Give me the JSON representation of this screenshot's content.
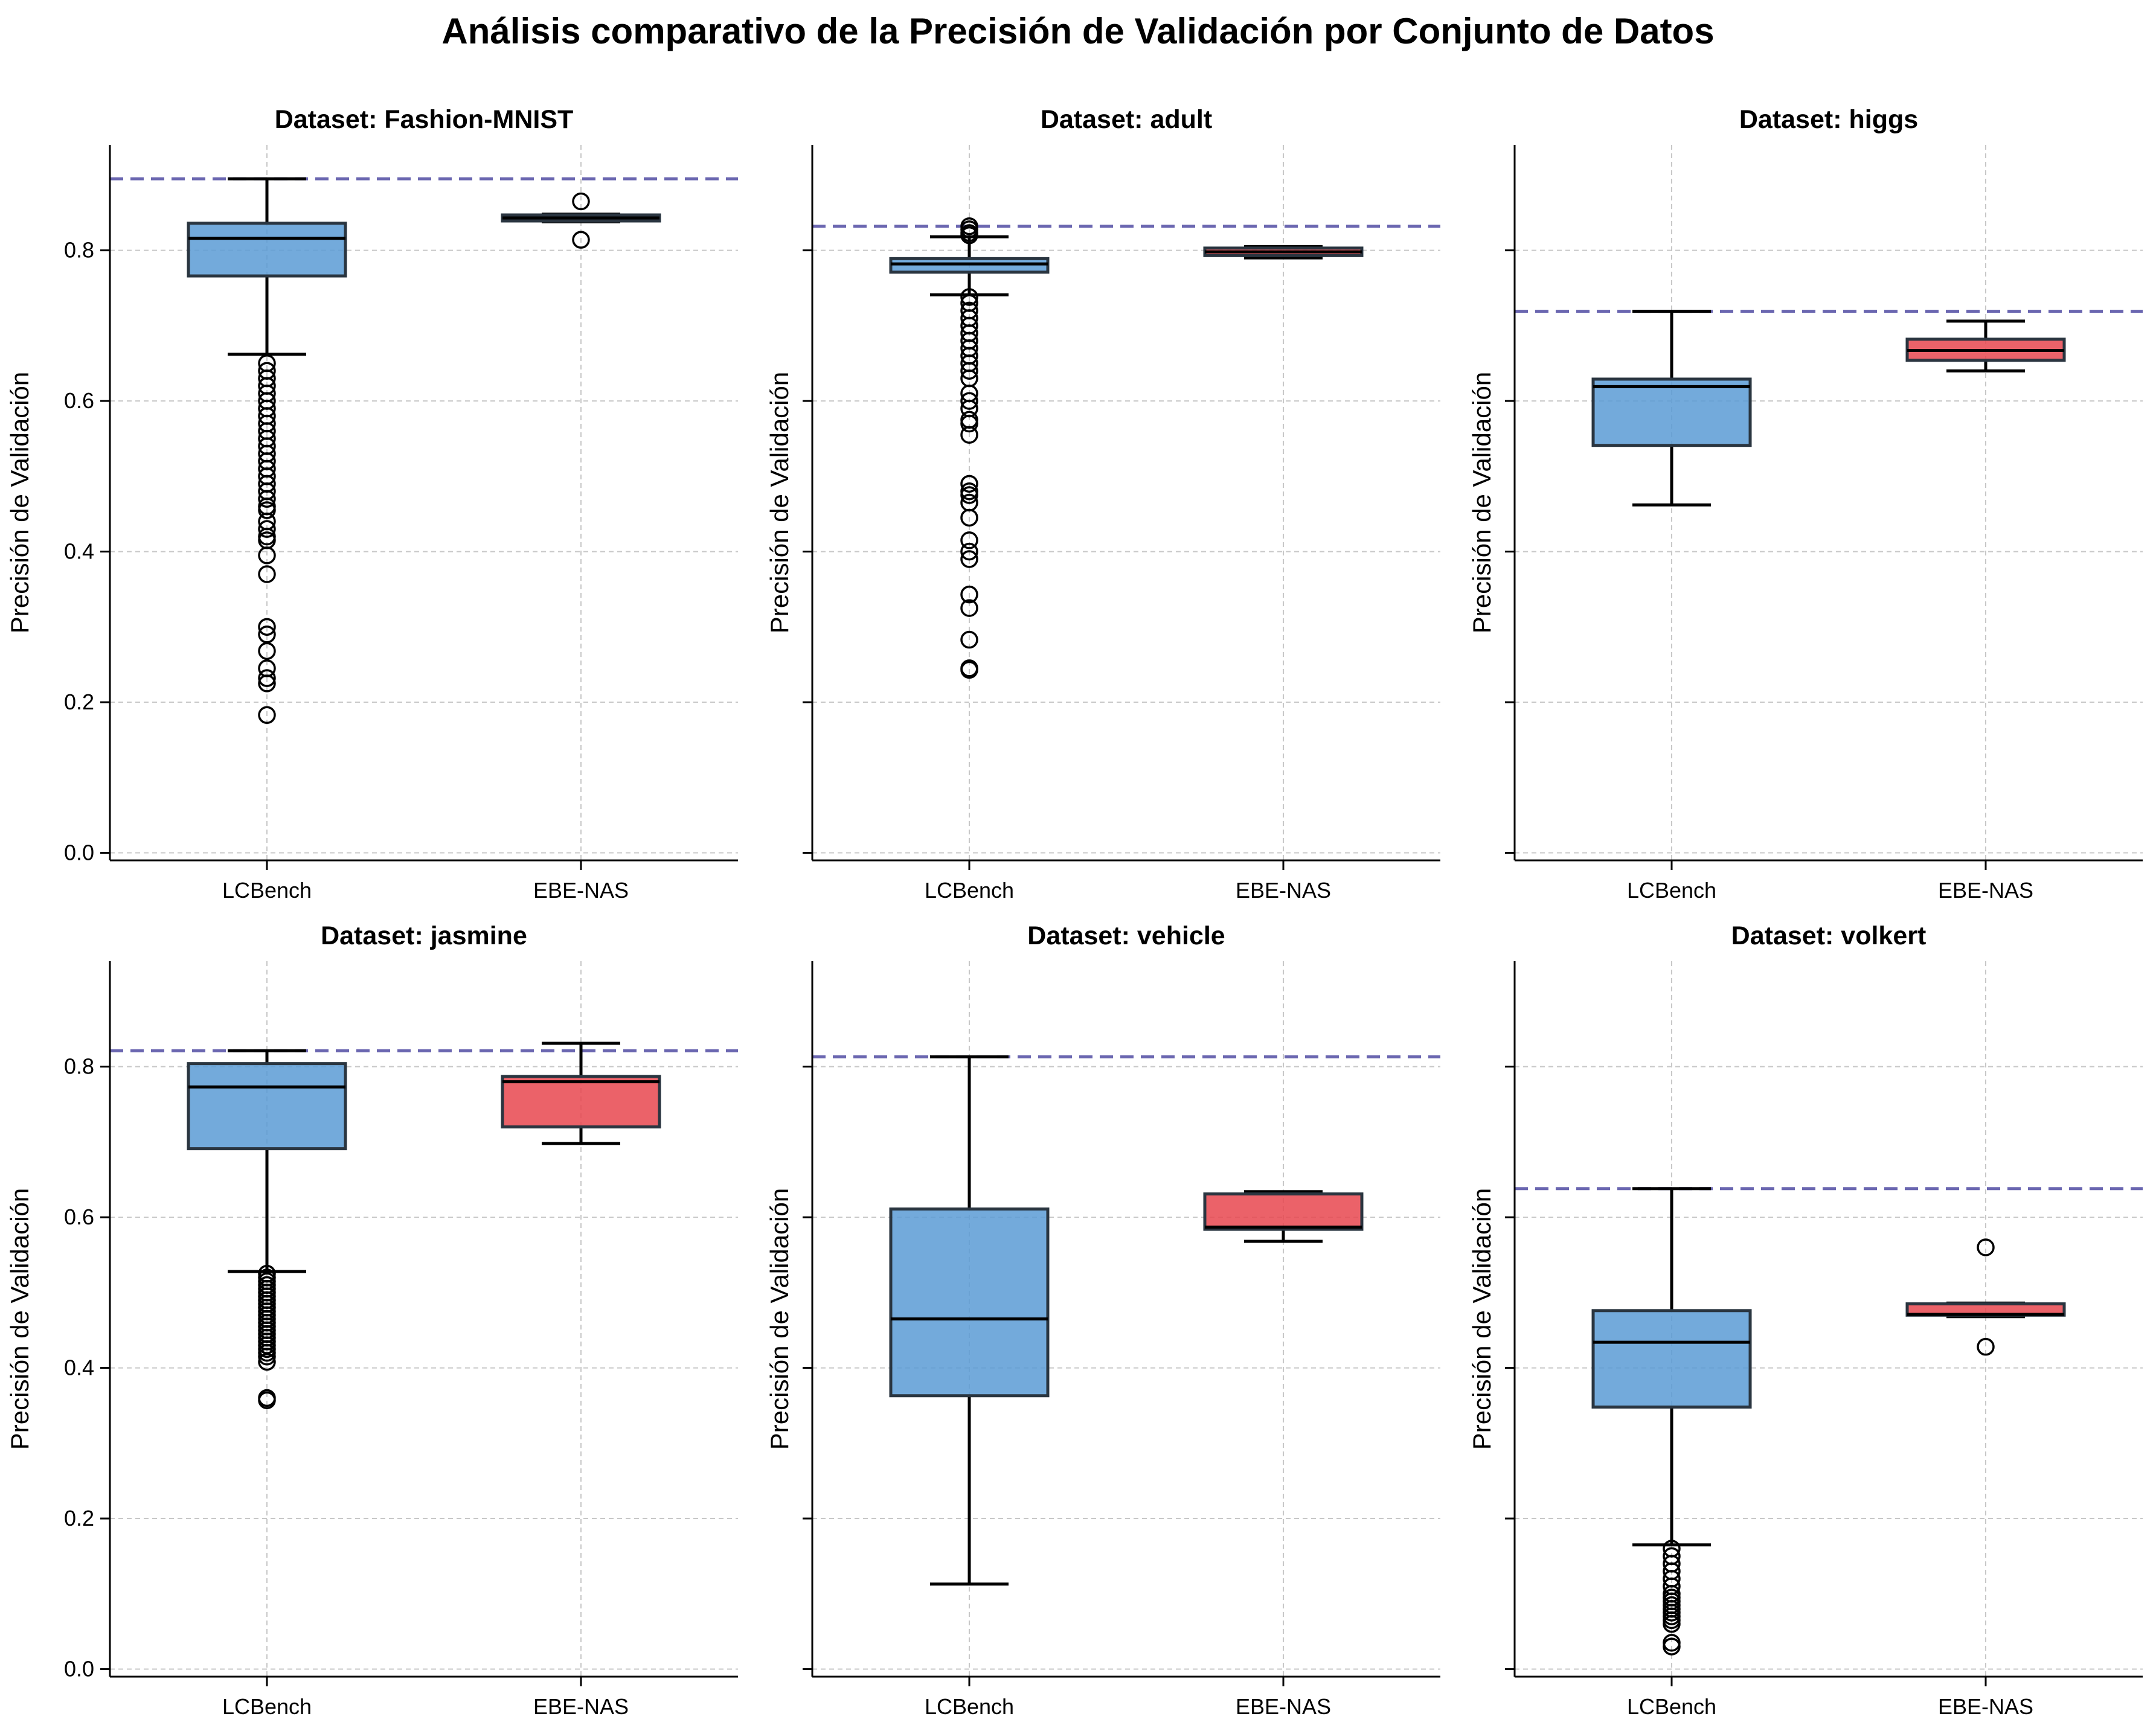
{
  "figure": {
    "title": "Análisis comparativo de la Precisión de Validación por Conjunto de Datos"
  },
  "chart_data": {
    "type": "box",
    "layout": "2x3 grid, shared y axis",
    "ylabel": "Precisión de Validación",
    "ylim": [
      -0.01,
      0.94
    ],
    "yticks": [
      "0.0",
      "0.2",
      "0.4",
      "0.6",
      "0.8"
    ],
    "categories": [
      "LCBench",
      "EBE-NAS"
    ],
    "grid": true,
    "reference_line": "dashed horizontal line at best value",
    "colors": {
      "LCBench": "#5b9bd5",
      "EBE-NAS": "#e8464f",
      "reference": "#6a66b0"
    },
    "panels": [
      {
        "title": "Dataset: Fashion-MNIST",
        "ref": 0.895,
        "boxes": [
          {
            "category": "LCBench",
            "whislo": 0.662,
            "q1": 0.766,
            "med": 0.816,
            "q3": 0.836,
            "whishi": 0.895,
            "fliers": [
              0.65,
              0.64,
              0.63,
              0.62,
              0.61,
              0.6,
              0.59,
              0.58,
              0.57,
              0.56,
              0.55,
              0.54,
              0.53,
              0.52,
              0.51,
              0.5,
              0.49,
              0.48,
              0.47,
              0.46,
              0.455,
              0.44,
              0.43,
              0.42,
              0.415,
              0.395,
              0.37,
              0.3,
              0.29,
              0.268,
              0.245,
              0.232,
              0.225,
              0.183
            ]
          },
          {
            "category": "EBE-NAS",
            "whislo": 0.838,
            "q1": 0.839,
            "med": 0.843,
            "q3": 0.847,
            "whishi": 0.848,
            "fliers": [
              0.865,
              0.814
            ]
          }
        ]
      },
      {
        "title": "Dataset: adult",
        "ref": 0.832,
        "boxes": [
          {
            "category": "LCBench",
            "whislo": 0.741,
            "q1": 0.771,
            "med": 0.782,
            "q3": 0.789,
            "whishi": 0.818,
            "fliers": [
              0.832,
              0.828,
              0.823,
              0.82,
              0.738,
              0.73,
              0.72,
              0.71,
              0.7,
              0.69,
              0.68,
              0.67,
              0.66,
              0.65,
              0.64,
              0.63,
              0.61,
              0.6,
              0.59,
              0.575,
              0.57,
              0.555,
              0.49,
              0.48,
              0.475,
              0.465,
              0.445,
              0.415,
              0.4,
              0.39,
              0.343,
              0.325,
              0.283,
              0.245,
              0.243
            ]
          },
          {
            "category": "EBE-NAS",
            "whislo": 0.79,
            "q1": 0.793,
            "med": 0.798,
            "q3": 0.803,
            "whishi": 0.805,
            "fliers": []
          }
        ]
      },
      {
        "title": "Dataset: higgs",
        "ref": 0.719,
        "boxes": [
          {
            "category": "LCBench",
            "whislo": 0.462,
            "q1": 0.541,
            "med": 0.619,
            "q3": 0.629,
            "whishi": 0.719,
            "fliers": []
          },
          {
            "category": "EBE-NAS",
            "whislo": 0.64,
            "q1": 0.654,
            "med": 0.667,
            "q3": 0.682,
            "whishi": 0.706,
            "fliers": []
          }
        ]
      },
      {
        "title": "Dataset: jasmine",
        "ref": 0.821,
        "boxes": [
          {
            "category": "LCBench",
            "whislo": 0.528,
            "q1": 0.691,
            "med": 0.773,
            "q3": 0.804,
            "whishi": 0.821,
            "fliers": [
              0.525,
              0.52,
              0.515,
              0.51,
              0.505,
              0.5,
              0.495,
              0.49,
              0.485,
              0.48,
              0.475,
              0.47,
              0.465,
              0.46,
              0.455,
              0.45,
              0.445,
              0.44,
              0.435,
              0.43,
              0.425,
              0.42,
              0.415,
              0.408,
              0.36,
              0.357
            ]
          },
          {
            "category": "EBE-NAS",
            "whislo": 0.698,
            "q1": 0.72,
            "med": 0.78,
            "q3": 0.787,
            "whishi": 0.831,
            "fliers": []
          }
        ]
      },
      {
        "title": "Dataset: vehicle",
        "ref": 0.813,
        "boxes": [
          {
            "category": "LCBench",
            "whislo": 0.113,
            "q1": 0.363,
            "med": 0.465,
            "q3": 0.611,
            "whishi": 0.813,
            "fliers": []
          },
          {
            "category": "EBE-NAS",
            "whislo": 0.568,
            "q1": 0.584,
            "med": 0.587,
            "q3": 0.631,
            "whishi": 0.634,
            "fliers": []
          }
        ]
      },
      {
        "title": "Dataset: volkert",
        "ref": 0.638,
        "boxes": [
          {
            "category": "LCBench",
            "whislo": 0.165,
            "q1": 0.348,
            "med": 0.434,
            "q3": 0.476,
            "whishi": 0.638,
            "fliers": [
              0.16,
              0.15,
              0.14,
              0.13,
              0.12,
              0.11,
              0.1,
              0.095,
              0.09,
              0.085,
              0.08,
              0.075,
              0.07,
              0.065,
              0.06,
              0.035,
              0.03
            ]
          },
          {
            "category": "EBE-NAS",
            "whislo": 0.468,
            "q1": 0.47,
            "med": 0.471,
            "q3": 0.485,
            "whishi": 0.486,
            "fliers": [
              0.56,
              0.428
            ]
          }
        ]
      }
    ]
  }
}
